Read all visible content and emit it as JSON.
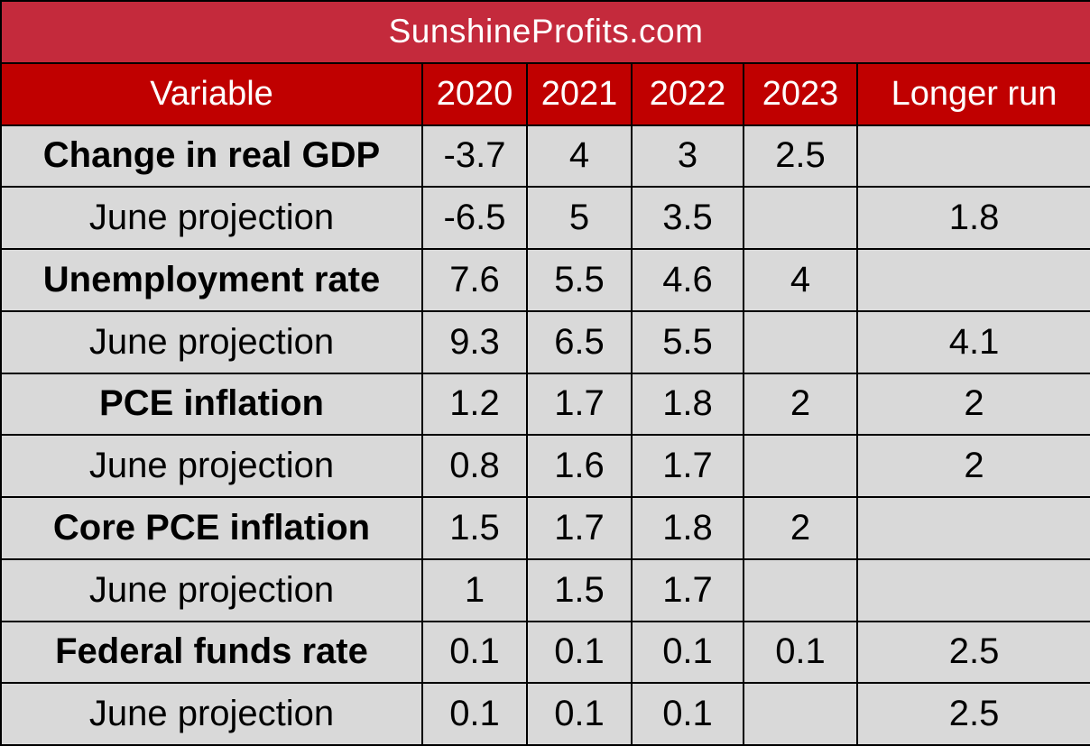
{
  "colors": {
    "brand_bg": "#c42a3c",
    "header_bg": "#c00000",
    "cell_bg": "#d9d9d9",
    "border": "#000000",
    "header_text": "#ffffff"
  },
  "brand": "SunshineProfits.com",
  "chart_data": {
    "type": "table",
    "columns": [
      "Variable",
      "2020",
      "2021",
      "2022",
      "2023",
      "Longer run"
    ],
    "rows": [
      {
        "label": "Change in real GDP",
        "bold": true,
        "values": [
          "-3.7",
          "4",
          "3",
          "2.5",
          ""
        ]
      },
      {
        "label": "June projection",
        "bold": false,
        "values": [
          "-6.5",
          "5",
          "3.5",
          "",
          "1.8"
        ]
      },
      {
        "label": "Unemployment rate",
        "bold": true,
        "values": [
          "7.6",
          "5.5",
          "4.6",
          "4",
          ""
        ]
      },
      {
        "label": "June projection",
        "bold": false,
        "values": [
          "9.3",
          "6.5",
          "5.5",
          "",
          "4.1"
        ]
      },
      {
        "label": "PCE inflation",
        "bold": true,
        "values": [
          "1.2",
          "1.7",
          "1.8",
          "2",
          "2"
        ]
      },
      {
        "label": "June projection",
        "bold": false,
        "values": [
          "0.8",
          "1.6",
          "1.7",
          "",
          "2"
        ]
      },
      {
        "label": "Core PCE inflation",
        "bold": true,
        "values": [
          "1.5",
          "1.7",
          "1.8",
          "2",
          ""
        ]
      },
      {
        "label": "June projection",
        "bold": false,
        "values": [
          "1",
          "1.5",
          "1.7",
          "",
          ""
        ]
      },
      {
        "label": "Federal funds rate",
        "bold": true,
        "values": [
          "0.1",
          "0.1",
          "0.1",
          "0.1",
          "2.5"
        ]
      },
      {
        "label": "June projection",
        "bold": false,
        "values": [
          "0.1",
          "0.1",
          "0.1",
          "",
          "2.5"
        ]
      }
    ]
  }
}
